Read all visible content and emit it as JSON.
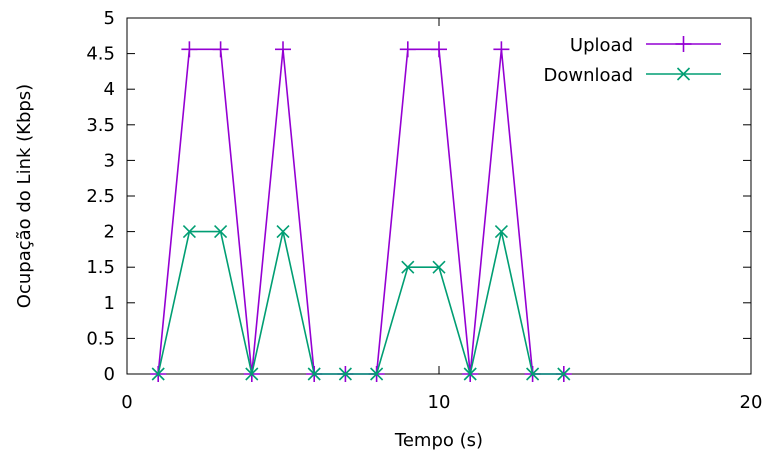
{
  "chart_data": {
    "type": "line",
    "xlabel": "Tempo (s)",
    "ylabel": "Ocupação do Link (Kbps)",
    "xlim": [
      0,
      20
    ],
    "ylim": [
      0,
      5
    ],
    "xticks": [
      0,
      10,
      20
    ],
    "xtick_labels": [
      "0",
      "10",
      "20"
    ],
    "yticks": [
      0,
      0.5,
      1,
      1.5,
      2,
      2.5,
      3,
      3.5,
      4,
      4.5,
      5
    ],
    "ytick_labels": [
      "0",
      "0.5",
      "1",
      "1.5",
      "2",
      "2.5",
      "3",
      "3.5",
      "4",
      "4.5",
      "5"
    ],
    "grid": false,
    "legend_position": "top-right",
    "series": [
      {
        "name": "Upload",
        "color": "#9400d3",
        "marker": "plus",
        "x": [
          1,
          2,
          3,
          4,
          5,
          6,
          7,
          8,
          9,
          10,
          11,
          12,
          13,
          14
        ],
        "y": [
          0,
          4.56,
          4.56,
          0,
          4.56,
          0,
          0,
          0,
          4.56,
          4.56,
          0,
          4.56,
          0,
          0
        ]
      },
      {
        "name": "Download",
        "color": "#009e73",
        "marker": "cross",
        "x": [
          1,
          2,
          3,
          4,
          5,
          6,
          7,
          8,
          9,
          10,
          11,
          12,
          13,
          14
        ],
        "y": [
          0,
          2,
          2,
          0,
          2,
          0,
          0,
          0,
          1.5,
          1.5,
          0,
          2,
          0,
          0
        ]
      }
    ]
  }
}
